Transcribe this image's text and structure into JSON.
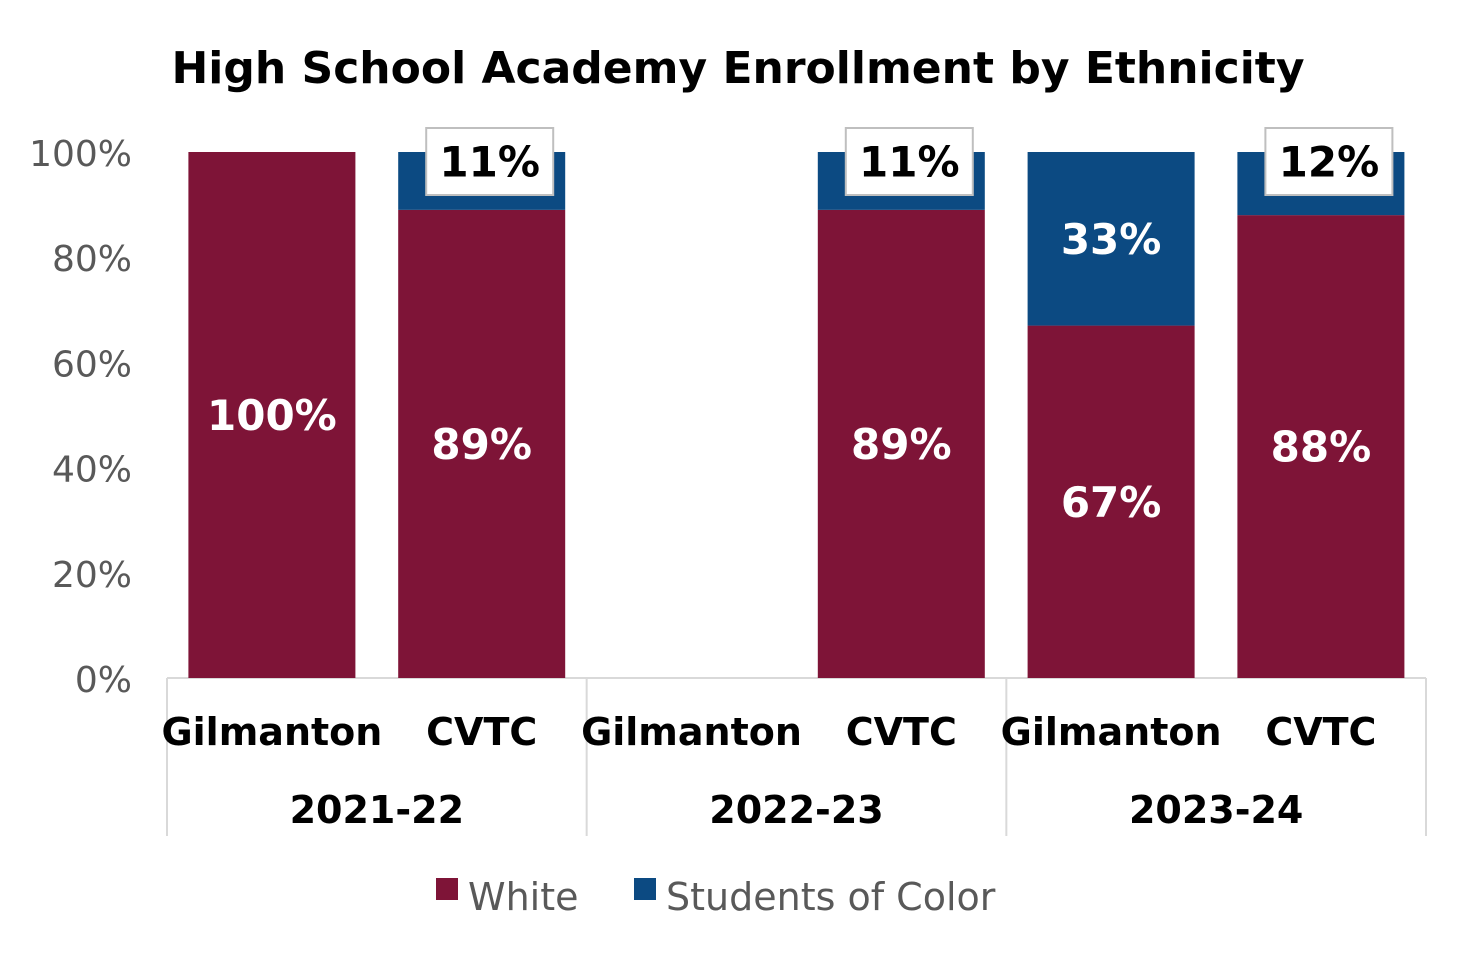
{
  "chart_data": {
    "type": "bar",
    "stacked": true,
    "title": "High School Academy Enrollment by Ethnicity",
    "xlabel": "",
    "ylabel": "",
    "ylim": [
      0,
      100
    ],
    "yticks": [
      0,
      20,
      40,
      60,
      80,
      100
    ],
    "ytick_labels": [
      "0%",
      "20%",
      "40%",
      "60%",
      "80%",
      "100%"
    ],
    "groups": [
      "2021-22",
      "2022-23",
      "2023-24"
    ],
    "categories": [
      "Gilmanton",
      "CVTC",
      "Gilmanton",
      "CVTC",
      "Gilmanton",
      "CVTC"
    ],
    "category_group": [
      0,
      0,
      1,
      1,
      2,
      2
    ],
    "series": [
      {
        "name": "White",
        "color": "#7e1437",
        "values": [
          100,
          89,
          null,
          89,
          67,
          88
        ],
        "labels": [
          "100%",
          "89%",
          null,
          "89%",
          "67%",
          "88%"
        ]
      },
      {
        "name": "Students of Color",
        "color": "#0c4a82",
        "values": [
          0,
          11,
          null,
          11,
          33,
          12
        ],
        "labels": [
          null,
          "11%",
          null,
          "11%",
          "33%",
          "12%"
        ]
      }
    ],
    "legend": {
      "position": "bottom",
      "entries": [
        "White",
        "Students of Color"
      ]
    },
    "colors": {
      "axis": "#d9d9d9",
      "tick_text": "#595959",
      "title_text": "#000000",
      "label_text": "#ffffff",
      "callout_bg": "#ffffff",
      "callout_border": "#bfbfbf",
      "callout_text": "#000000"
    }
  }
}
